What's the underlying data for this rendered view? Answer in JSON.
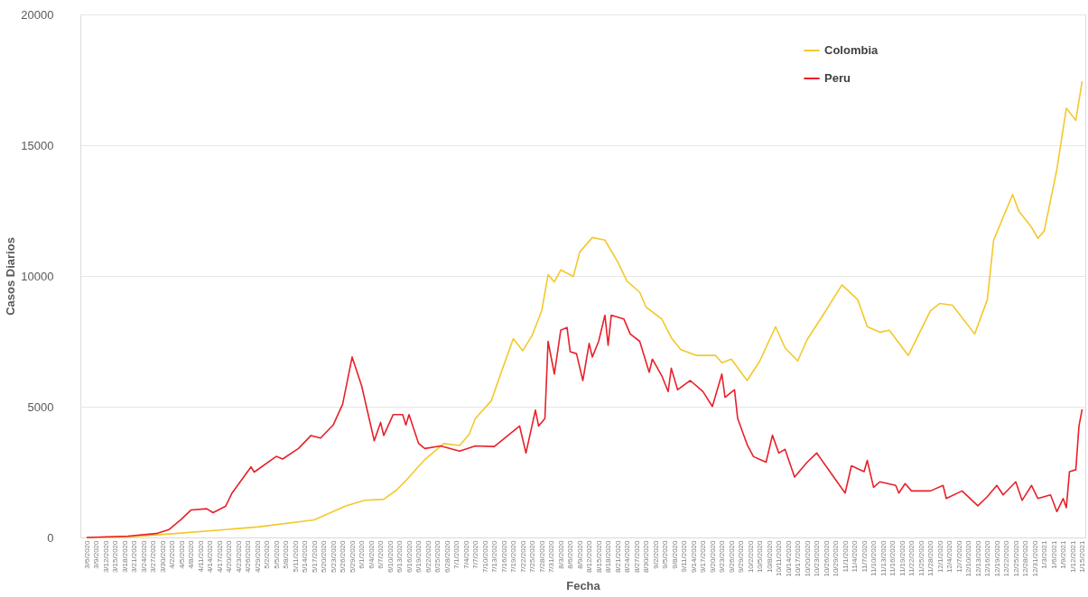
{
  "chart_data": {
    "type": "line",
    "xlabel": "Fecha",
    "ylabel": "Casos Diarios",
    "xlim": [
      "2020-03-04",
      "2021-01-16"
    ],
    "ylim": [
      0,
      20000
    ],
    "yticks": [
      0,
      5000,
      10000,
      15000,
      20000
    ],
    "xticks": [
      {
        "value": "2020-03-06",
        "label": "3/6/2020"
      },
      {
        "value": "2020-03-09",
        "label": "3/9/2020"
      },
      {
        "value": "2020-03-12",
        "label": "3/12/2020"
      },
      {
        "value": "2020-03-15",
        "label": "3/15/2020"
      },
      {
        "value": "2020-03-18",
        "label": "3/18/2020"
      },
      {
        "value": "2020-03-21",
        "label": "3/21/2020"
      },
      {
        "value": "2020-03-24",
        "label": "3/24/2020"
      },
      {
        "value": "2020-03-27",
        "label": "3/27/2020"
      },
      {
        "value": "2020-03-30",
        "label": "3/30/2020"
      },
      {
        "value": "2020-04-02",
        "label": "4/2/2020"
      },
      {
        "value": "2020-04-05",
        "label": "4/5/2020"
      },
      {
        "value": "2020-04-08",
        "label": "4/8/2020"
      },
      {
        "value": "2020-04-11",
        "label": "4/11/2020"
      },
      {
        "value": "2020-04-14",
        "label": "4/14/2020"
      },
      {
        "value": "2020-04-17",
        "label": "4/17/2020"
      },
      {
        "value": "2020-04-20",
        "label": "4/20/2020"
      },
      {
        "value": "2020-04-23",
        "label": "4/23/2020"
      },
      {
        "value": "2020-04-26",
        "label": "4/26/2020"
      },
      {
        "value": "2020-04-29",
        "label": "4/29/2020"
      },
      {
        "value": "2020-05-02",
        "label": "5/2/2020"
      },
      {
        "value": "2020-05-05",
        "label": "5/5/2020"
      },
      {
        "value": "2020-05-08",
        "label": "5/8/2020"
      },
      {
        "value": "2020-05-11",
        "label": "5/11/2020"
      },
      {
        "value": "2020-05-14",
        "label": "5/14/2020"
      },
      {
        "value": "2020-05-17",
        "label": "5/17/2020"
      },
      {
        "value": "2020-05-20",
        "label": "5/20/2020"
      },
      {
        "value": "2020-05-23",
        "label": "5/23/2020"
      },
      {
        "value": "2020-05-26",
        "label": "5/26/2020"
      },
      {
        "value": "2020-05-29",
        "label": "5/29/2020"
      },
      {
        "value": "2020-06-01",
        "label": "6/1/2020"
      },
      {
        "value": "2020-06-04",
        "label": "6/4/2020"
      },
      {
        "value": "2020-06-07",
        "label": "6/7/2020"
      },
      {
        "value": "2020-06-10",
        "label": "6/10/2020"
      },
      {
        "value": "2020-06-13",
        "label": "6/13/2020"
      },
      {
        "value": "2020-06-16",
        "label": "6/16/2020"
      },
      {
        "value": "2020-06-19",
        "label": "6/19/2020"
      },
      {
        "value": "2020-06-22",
        "label": "6/22/2020"
      },
      {
        "value": "2020-06-25",
        "label": "6/25/2020"
      },
      {
        "value": "2020-06-28",
        "label": "6/28/2020"
      },
      {
        "value": "2020-07-01",
        "label": "7/1/2020"
      },
      {
        "value": "2020-07-04",
        "label": "7/4/2020"
      },
      {
        "value": "2020-07-07",
        "label": "7/7/2020"
      },
      {
        "value": "2020-07-10",
        "label": "7/10/2020"
      },
      {
        "value": "2020-07-13",
        "label": "7/13/2020"
      },
      {
        "value": "2020-07-16",
        "label": "7/16/2020"
      },
      {
        "value": "2020-07-19",
        "label": "7/19/2020"
      },
      {
        "value": "2020-07-22",
        "label": "7/22/2020"
      },
      {
        "value": "2020-07-25",
        "label": "7/25/2020"
      },
      {
        "value": "2020-07-28",
        "label": "7/28/2020"
      },
      {
        "value": "2020-07-31",
        "label": "7/31/2020"
      },
      {
        "value": "2020-08-03",
        "label": "8/3/2020"
      },
      {
        "value": "2020-08-06",
        "label": "8/6/2020"
      },
      {
        "value": "2020-08-09",
        "label": "8/9/2020"
      },
      {
        "value": "2020-08-12",
        "label": "8/12/2020"
      },
      {
        "value": "2020-08-15",
        "label": "8/15/2020"
      },
      {
        "value": "2020-08-18",
        "label": "8/18/2020"
      },
      {
        "value": "2020-08-21",
        "label": "8/21/2020"
      },
      {
        "value": "2020-08-24",
        "label": "8/24/2020"
      },
      {
        "value": "2020-08-27",
        "label": "8/27/2020"
      },
      {
        "value": "2020-08-30",
        "label": "8/30/2020"
      },
      {
        "value": "2020-09-02",
        "label": "9/2/2020"
      },
      {
        "value": "2020-09-05",
        "label": "9/5/2020"
      },
      {
        "value": "2020-09-08",
        "label": "9/8/2020"
      },
      {
        "value": "2020-09-11",
        "label": "9/11/2020"
      },
      {
        "value": "2020-09-14",
        "label": "9/14/2020"
      },
      {
        "value": "2020-09-17",
        "label": "9/17/2020"
      },
      {
        "value": "2020-09-20",
        "label": "9/20/2020"
      },
      {
        "value": "2020-09-23",
        "label": "9/23/2020"
      },
      {
        "value": "2020-09-26",
        "label": "9/26/2020"
      },
      {
        "value": "2020-09-29",
        "label": "9/29/2020"
      },
      {
        "value": "2020-10-02",
        "label": "10/2/2020"
      },
      {
        "value": "2020-10-05",
        "label": "10/5/2020"
      },
      {
        "value": "2020-10-08",
        "label": "10/8/2020"
      },
      {
        "value": "2020-10-11",
        "label": "10/11/2020"
      },
      {
        "value": "2020-10-14",
        "label": "10/14/2020"
      },
      {
        "value": "2020-10-17",
        "label": "10/17/2020"
      },
      {
        "value": "2020-10-20",
        "label": "10/20/2020"
      },
      {
        "value": "2020-10-23",
        "label": "10/23/2020"
      },
      {
        "value": "2020-10-26",
        "label": "10/26/2020"
      },
      {
        "value": "2020-10-29",
        "label": "10/29/2020"
      },
      {
        "value": "2020-11-01",
        "label": "11/1/2020"
      },
      {
        "value": "2020-11-04",
        "label": "11/4/2020"
      },
      {
        "value": "2020-11-07",
        "label": "11/7/2020"
      },
      {
        "value": "2020-11-10",
        "label": "11/10/2020"
      },
      {
        "value": "2020-11-13",
        "label": "11/13/2020"
      },
      {
        "value": "2020-11-16",
        "label": "11/16/2020"
      },
      {
        "value": "2020-11-19",
        "label": "11/19/2020"
      },
      {
        "value": "2020-11-22",
        "label": "11/22/2020"
      },
      {
        "value": "2020-11-25",
        "label": "11/25/2020"
      },
      {
        "value": "2020-11-28",
        "label": "11/28/2020"
      },
      {
        "value": "2020-12-01",
        "label": "12/1/2020"
      },
      {
        "value": "2020-12-04",
        "label": "12/4/2020"
      },
      {
        "value": "2020-12-07",
        "label": "12/7/2020"
      },
      {
        "value": "2020-12-10",
        "label": "12/10/2020"
      },
      {
        "value": "2020-12-13",
        "label": "12/13/2020"
      },
      {
        "value": "2020-12-16",
        "label": "12/16/2020"
      },
      {
        "value": "2020-12-19",
        "label": "12/19/2020"
      },
      {
        "value": "2020-12-22",
        "label": "12/22/2020"
      },
      {
        "value": "2020-12-25",
        "label": "12/25/2020"
      },
      {
        "value": "2020-12-28",
        "label": "12/28/2020"
      },
      {
        "value": "2020-12-31",
        "label": "12/31/2020"
      },
      {
        "value": "2021-01-03",
        "label": "1/3/2021"
      },
      {
        "value": "2021-01-06",
        "label": "1/6/2021"
      },
      {
        "value": "2021-01-09",
        "label": "1/9/2021"
      },
      {
        "value": "2021-01-12",
        "label": "1/12/2021"
      },
      {
        "value": "2021-01-15",
        "label": "1/15/2021"
      }
    ],
    "grid": "y",
    "legend": "top right",
    "line_style": "solid",
    "series": [
      {
        "name": "Colombia",
        "color": "#f4c82a",
        "x": [
          "2020-03-06",
          "2020-03-19",
          "2020-04-03",
          "2020-04-29",
          "2020-05-17",
          "2020-05-27",
          "2020-06-02",
          "2020-06-08",
          "2020-06-12",
          "2020-06-15",
          "2020-06-21",
          "2020-06-27",
          "2020-07-02",
          "2020-07-05",
          "2020-07-07",
          "2020-07-12",
          "2020-07-15",
          "2020-07-19",
          "2020-07-22",
          "2020-07-25",
          "2020-07-28",
          "2020-07-30",
          "2020-08-01",
          "2020-08-03",
          "2020-08-07",
          "2020-08-09",
          "2020-08-13",
          "2020-08-17",
          "2020-08-21",
          "2020-08-24",
          "2020-08-28",
          "2020-08-30",
          "2020-09-04",
          "2020-09-07",
          "2020-09-10",
          "2020-09-15",
          "2020-09-21",
          "2020-09-23",
          "2020-09-26",
          "2020-10-01",
          "2020-10-05",
          "2020-10-10",
          "2020-10-13",
          "2020-10-17",
          "2020-10-20",
          "2020-10-25",
          "2020-10-31",
          "2020-11-05",
          "2020-11-08",
          "2020-11-12",
          "2020-11-15",
          "2020-11-21",
          "2020-11-28",
          "2020-12-01",
          "2020-12-05",
          "2020-12-12",
          "2020-12-16",
          "2020-12-18",
          "2020-12-24",
          "2020-12-26",
          "2020-12-30",
          "2021-01-01",
          "2021-01-03",
          "2021-01-07",
          "2021-01-10",
          "2021-01-13",
          "2021-01-15"
        ],
        "values": [
          0,
          20,
          150,
          400,
          670,
          1210,
          1420,
          1460,
          1810,
          2170,
          2980,
          3590,
          3520,
          3940,
          4550,
          5220,
          6250,
          7600,
          7140,
          7740,
          8670,
          10050,
          9770,
          10230,
          9980,
          10910,
          11470,
          11370,
          10550,
          9800,
          9380,
          8810,
          8350,
          7640,
          7180,
          6960,
          6960,
          6680,
          6820,
          6000,
          6750,
          8060,
          7250,
          6750,
          7570,
          8500,
          9660,
          9090,
          8060,
          7850,
          7920,
          6960,
          8670,
          8950,
          8880,
          7780,
          9090,
          11370,
          13110,
          12470,
          11860,
          11440,
          11720,
          14070,
          16410,
          15950,
          17440
        ]
      },
      {
        "name": "Peru",
        "color": "#e8202a",
        "x": [
          "2020-03-06",
          "2020-03-19",
          "2020-03-28",
          "2020-04-01",
          "2020-04-05",
          "2020-04-08",
          "2020-04-13",
          "2020-04-15",
          "2020-04-19",
          "2020-04-21",
          "2020-04-27",
          "2020-04-28",
          "2020-05-05",
          "2020-05-07",
          "2020-05-12",
          "2020-05-16",
          "2020-05-19",
          "2020-05-23",
          "2020-05-26",
          "2020-05-29",
          "2020-06-01",
          "2020-06-05",
          "2020-06-07",
          "2020-06-08",
          "2020-06-11",
          "2020-06-14",
          "2020-06-15",
          "2020-06-16",
          "2020-06-19",
          "2020-06-21",
          "2020-06-26",
          "2020-07-02",
          "2020-07-07",
          "2020-07-13",
          "2020-07-21",
          "2020-07-23",
          "2020-07-26",
          "2020-07-27",
          "2020-07-29",
          "2020-07-30",
          "2020-08-01",
          "2020-08-03",
          "2020-08-05",
          "2020-08-06",
          "2020-08-08",
          "2020-08-10",
          "2020-08-12",
          "2020-08-13",
          "2020-08-15",
          "2020-08-17",
          "2020-08-18",
          "2020-08-19",
          "2020-08-23",
          "2020-08-25",
          "2020-08-28",
          "2020-08-31",
          "2020-09-01",
          "2020-09-04",
          "2020-09-06",
          "2020-09-07",
          "2020-09-09",
          "2020-09-13",
          "2020-09-17",
          "2020-09-20",
          "2020-09-23",
          "2020-09-24",
          "2020-09-27",
          "2020-09-28",
          "2020-10-01",
          "2020-10-03",
          "2020-10-07",
          "2020-10-09",
          "2020-10-11",
          "2020-10-13",
          "2020-10-16",
          "2020-10-20",
          "2020-10-23",
          "2020-10-28",
          "2020-11-01",
          "2020-11-03",
          "2020-11-07",
          "2020-11-08",
          "2020-11-10",
          "2020-11-12",
          "2020-11-17",
          "2020-11-18",
          "2020-11-20",
          "2020-11-22",
          "2020-11-28",
          "2020-12-02",
          "2020-12-03",
          "2020-12-08",
          "2020-12-13",
          "2020-12-16",
          "2020-12-19",
          "2020-12-21",
          "2020-12-25",
          "2020-12-27",
          "2020-12-30",
          "2021-01-01",
          "2021-01-05",
          "2021-01-07",
          "2021-01-09",
          "2021-01-10",
          "2021-01-11",
          "2021-01-13",
          "2021-01-14",
          "2021-01-15"
        ],
        "values": [
          0,
          50,
          150,
          300,
          700,
          1050,
          1100,
          950,
          1200,
          1700,
          2700,
          2500,
          3100,
          3000,
          3400,
          3900,
          3800,
          4300,
          5100,
          6900,
          5800,
          3700,
          4400,
          3900,
          4700,
          4700,
          4300,
          4700,
          3600,
          3400,
          3500,
          3300,
          3500,
          3480,
          4260,
          3230,
          4870,
          4260,
          4550,
          7500,
          6250,
          7920,
          8030,
          7100,
          7030,
          6000,
          7420,
          6900,
          7500,
          8500,
          7350,
          8500,
          8350,
          7780,
          7500,
          6320,
          6820,
          6180,
          5580,
          6470,
          5650,
          6000,
          5580,
          5010,
          6250,
          5360,
          5650,
          4550,
          3550,
          3090,
          2880,
          3910,
          3230,
          3370,
          2310,
          2880,
          3230,
          2380,
          1700,
          2740,
          2520,
          2950,
          1920,
          2130,
          1990,
          1700,
          2060,
          1780,
          1780,
          1990,
          1490,
          1780,
          1210,
          1560,
          1990,
          1630,
          2130,
          1420,
          1990,
          1490,
          1630,
          990,
          1490,
          1140,
          2520,
          2590,
          4260,
          4900
        ]
      }
    ]
  }
}
